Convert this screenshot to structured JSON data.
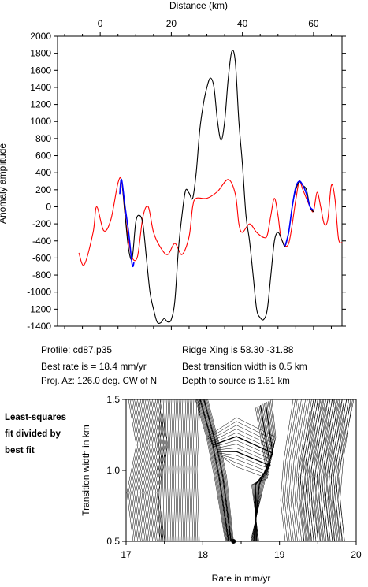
{
  "chart_data": [
    {
      "type": "line",
      "xlabel": "Distance (km)",
      "ylabel": "Anomaly amplitude",
      "xlim": [
        -12,
        68
      ],
      "ylim": [
        -1400,
        2000
      ],
      "x_ticks": [
        0,
        20,
        40,
        60
      ],
      "y_ticks": [
        -1400,
        -1200,
        -1000,
        -800,
        -600,
        -400,
        -200,
        0,
        200,
        400,
        600,
        800,
        1000,
        1200,
        1400,
        1600,
        1800,
        2000
      ],
      "grid": false,
      "series": [
        {
          "color": "#ff0000",
          "points": [
            [
              -6,
              -540
            ],
            [
              -4.5,
              -680
            ],
            [
              -2,
              -300
            ],
            [
              -1,
              0
            ],
            [
              1,
              -280
            ],
            [
              3,
              -150
            ],
            [
              5,
              280
            ],
            [
              6,
              300
            ],
            [
              7,
              -100
            ],
            [
              8,
              -400
            ],
            [
              9,
              -600
            ],
            [
              10.5,
              -580
            ],
            [
              12,
              -120
            ],
            [
              13.5,
              0
            ],
            [
              15,
              -300
            ],
            [
              17,
              -480
            ],
            [
              19,
              -560
            ],
            [
              21,
              -430
            ],
            [
              23,
              -560
            ],
            [
              25,
              -350
            ],
            [
              26,
              0
            ],
            [
              27,
              100
            ],
            [
              30,
              100
            ],
            [
              33,
              180
            ],
            [
              36,
              320
            ],
            [
              38,
              150
            ],
            [
              39,
              -200
            ],
            [
              40,
              -300
            ],
            [
              42,
              -200
            ],
            [
              44,
              -300
            ],
            [
              46,
              -360
            ],
            [
              47,
              -330
            ],
            [
              48,
              -100
            ],
            [
              49,
              100
            ],
            [
              50,
              -100
            ],
            [
              51,
              -380
            ],
            [
              53,
              -430
            ],
            [
              55,
              80
            ],
            [
              56,
              300
            ],
            [
              57,
              200
            ],
            [
              59,
              0
            ],
            [
              60,
              -50
            ],
            [
              61,
              170
            ],
            [
              62,
              0
            ],
            [
              63,
              -200
            ],
            [
              64,
              -150
            ],
            [
              65,
              250
            ],
            [
              66,
              100
            ],
            [
              67,
              -370
            ],
            [
              68,
              -420
            ]
          ]
        },
        {
          "color": "#000000",
          "points": [
            [
              5.5,
              150
            ],
            [
              6,
              320
            ],
            [
              7,
              -100
            ],
            [
              8,
              -500
            ],
            [
              9,
              -600
            ],
            [
              10,
              -180
            ],
            [
              11,
              -100
            ],
            [
              12,
              -200
            ],
            [
              13,
              -600
            ],
            [
              14,
              -1000
            ],
            [
              15,
              -1200
            ],
            [
              16,
              -1350
            ],
            [
              17,
              -1360
            ],
            [
              18,
              -1310
            ],
            [
              19,
              -1350
            ],
            [
              20,
              -1320
            ],
            [
              21,
              -1100
            ],
            [
              22,
              -500
            ],
            [
              23,
              -100
            ],
            [
              24,
              190
            ],
            [
              25,
              160
            ],
            [
              26,
              100
            ],
            [
              27,
              400
            ],
            [
              28,
              900
            ],
            [
              29,
              1200
            ],
            [
              30,
              1400
            ],
            [
              31,
              1510
            ],
            [
              32,
              1400
            ],
            [
              33,
              1000
            ],
            [
              34,
              780
            ],
            [
              35,
              1000
            ],
            [
              36,
              1500
            ],
            [
              37,
              1820
            ],
            [
              38,
              1700
            ],
            [
              39,
              1000
            ],
            [
              40,
              500
            ],
            [
              41,
              -100
            ],
            [
              42,
              -400
            ],
            [
              43,
              -800
            ],
            [
              44,
              -1200
            ],
            [
              45,
              -1300
            ],
            [
              46,
              -1320
            ],
            [
              47,
              -1200
            ],
            [
              48,
              -800
            ],
            [
              49,
              -400
            ],
            [
              50,
              -300
            ],
            [
              51,
              -380
            ],
            [
              52,
              -460
            ],
            [
              53,
              -300
            ],
            [
              54,
              0
            ],
            [
              55,
              200
            ],
            [
              56,
              290
            ],
            [
              57,
              250
            ],
            [
              58,
              200
            ],
            [
              59,
              0
            ],
            [
              60,
              -60
            ]
          ]
        },
        {
          "color": "#0000ff",
          "points": [
            [
              5.5,
              150
            ],
            [
              6,
              320
            ],
            [
              7,
              0
            ],
            [
              8,
              -300
            ],
            [
              9,
              -680
            ],
            [
              9.5,
              -650
            ]
          ]
        },
        {
          "color": "#0000ff",
          "points": [
            [
              52,
              -460
            ],
            [
              53,
              -300
            ],
            [
              54,
              0
            ],
            [
              55,
              230
            ],
            [
              56,
              300
            ],
            [
              57,
              250
            ],
            [
              58,
              150
            ],
            [
              59,
              0
            ],
            [
              60,
              -40
            ]
          ]
        }
      ]
    },
    {
      "type": "contour",
      "xlabel": "Rate in mm/yr",
      "ylabel": "Transition width in km",
      "xlim": [
        17,
        20
      ],
      "ylim": [
        0.5,
        1.5
      ],
      "x_ticks": [
        17,
        18,
        19,
        20
      ],
      "y_ticks": [
        0.5,
        1.0,
        1.5
      ],
      "best_fit_point": [
        18.4,
        0.5
      ]
    }
  ],
  "info": {
    "profile": "Profile: cd87.p35",
    "best_rate": "Best rate is = 18.4 mm/yr",
    "proj_az": "Proj. Az: 126.0 deg. CW of N",
    "ridge_xing": "Ridge Xing is 58.30 -31.88",
    "best_width": "Best transition width is 0.5 km",
    "depth": "Depth to source is   1.61 km"
  },
  "note": [
    "Least-squares",
    "fit divided by",
    "best fit"
  ]
}
